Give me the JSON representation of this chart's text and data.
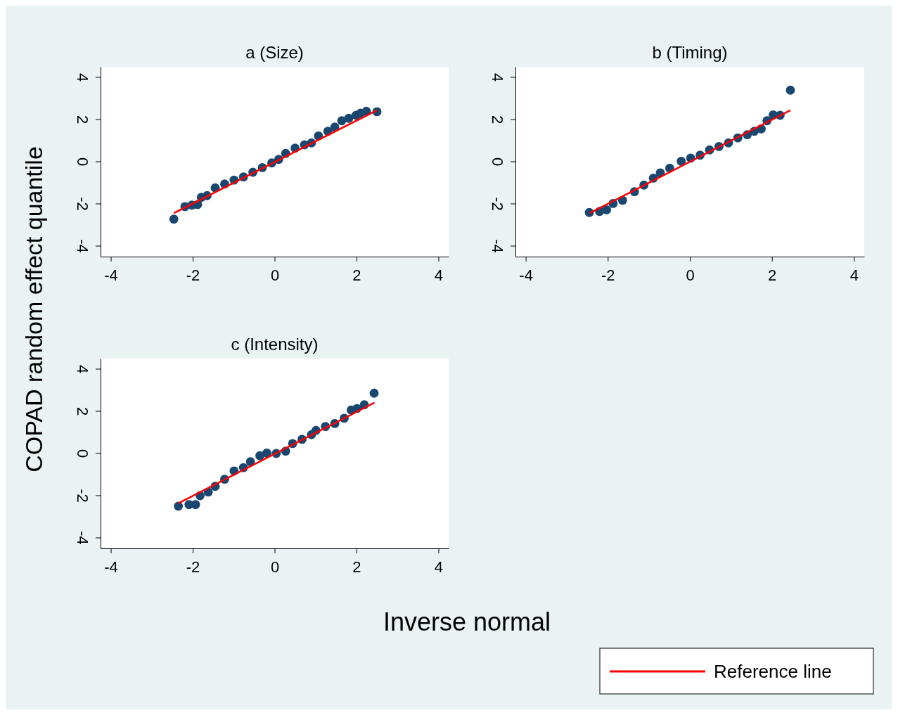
{
  "chart_data": [
    {
      "type": "scatter",
      "title": "a (Size)",
      "xlim": [
        -4.25,
        4.25
      ],
      "ylim": [
        -4.5,
        4.5
      ],
      "xticks": [
        -4,
        -2,
        0,
        2,
        4
      ],
      "yticks": [
        -4,
        -2,
        0,
        2,
        4
      ],
      "grid": false,
      "series": [
        {
          "marker": "circle",
          "color": "#1a476f",
          "x": [
            -2.46,
            -2.19,
            -2.02,
            -1.88,
            -1.79,
            -1.65,
            -1.45,
            -1.22,
            -0.99,
            -0.76,
            -0.53,
            -0.3,
            -0.07,
            0.1,
            0.27,
            0.5,
            0.73,
            0.9,
            1.07,
            1.3,
            1.47,
            1.64,
            1.81,
            1.99,
            2.1,
            2.24,
            2.5
          ],
          "values": [
            -2.72,
            -2.13,
            -2.06,
            -2.03,
            -1.69,
            -1.61,
            -1.24,
            -1.06,
            -0.87,
            -0.72,
            -0.5,
            -0.28,
            -0.06,
            0.11,
            0.39,
            0.64,
            0.8,
            0.89,
            1.22,
            1.44,
            1.64,
            1.94,
            2.06,
            2.2,
            2.3,
            2.39,
            2.37
          ]
        },
        {
          "type": "line",
          "color": "#ff0000",
          "x": [
            -2.46,
            2.5
          ],
          "values": [
            -2.44,
            2.44
          ]
        }
      ]
    },
    {
      "type": "scatter",
      "title": "b (Timing)",
      "xlim": [
        -4.25,
        4.25
      ],
      "ylim": [
        -4.5,
        4.5
      ],
      "xticks": [
        -4,
        -2,
        0,
        2,
        4
      ],
      "yticks": [
        -4,
        -2,
        0,
        2,
        4
      ],
      "grid": false,
      "series": [
        {
          "marker": "circle",
          "color": "#1a476f",
          "x": [
            -2.45,
            -2.2,
            -2.03,
            -1.87,
            -1.64,
            -1.35,
            -1.12,
            -0.89,
            -0.72,
            -0.49,
            -0.21,
            0.02,
            0.25,
            0.48,
            0.71,
            0.94,
            1.17,
            1.4,
            1.57,
            1.74,
            1.88,
            2.03,
            2.2,
            2.45
          ],
          "values": [
            -2.41,
            -2.36,
            -2.28,
            -1.98,
            -1.83,
            -1.42,
            -1.11,
            -0.78,
            -0.53,
            -0.31,
            0.02,
            0.17,
            0.31,
            0.56,
            0.72,
            0.89,
            1.13,
            1.28,
            1.44,
            1.56,
            1.94,
            2.22,
            2.2,
            3.39
          ]
        },
        {
          "type": "line",
          "color": "#ff0000",
          "x": [
            -2.44,
            2.45
          ],
          "values": [
            -2.44,
            2.44
          ]
        }
      ]
    },
    {
      "type": "scatter",
      "title": "c (Intensity)",
      "xlabel": "Inverse normal",
      "ylabel": "COPAD random effect quantile",
      "xlim": [
        -4.25,
        4.25
      ],
      "ylim": [
        -4.5,
        4.5
      ],
      "xticks": [
        -4,
        -2,
        0,
        2,
        4
      ],
      "yticks": [
        -4,
        -2,
        0,
        2,
        4
      ],
      "grid": false,
      "legend": "bottom right",
      "series": [
        {
          "marker": "circle",
          "color": "#1a476f",
          "x": [
            -2.35,
            -2.09,
            -1.93,
            -1.82,
            -1.62,
            -1.45,
            -1.22,
            -0.99,
            -0.76,
            -0.59,
            -0.36,
            -0.19,
            0.04,
            0.27,
            0.44,
            0.67,
            0.9,
            1.01,
            1.24,
            1.47,
            1.7,
            1.87,
            2.01,
            2.19,
            2.43
          ],
          "values": [
            -2.5,
            -2.42,
            -2.42,
            -2.0,
            -1.83,
            -1.56,
            -1.22,
            -0.83,
            -0.67,
            -0.39,
            -0.11,
            0.02,
            0.0,
            0.11,
            0.47,
            0.67,
            0.89,
            1.09,
            1.28,
            1.42,
            1.67,
            2.06,
            2.13,
            2.31,
            2.86
          ]
        },
        {
          "type": "line",
          "name": "Reference line",
          "color": "#ff0000",
          "x": [
            -2.35,
            2.44
          ],
          "values": [
            -2.36,
            2.41
          ]
        }
      ]
    }
  ]
}
